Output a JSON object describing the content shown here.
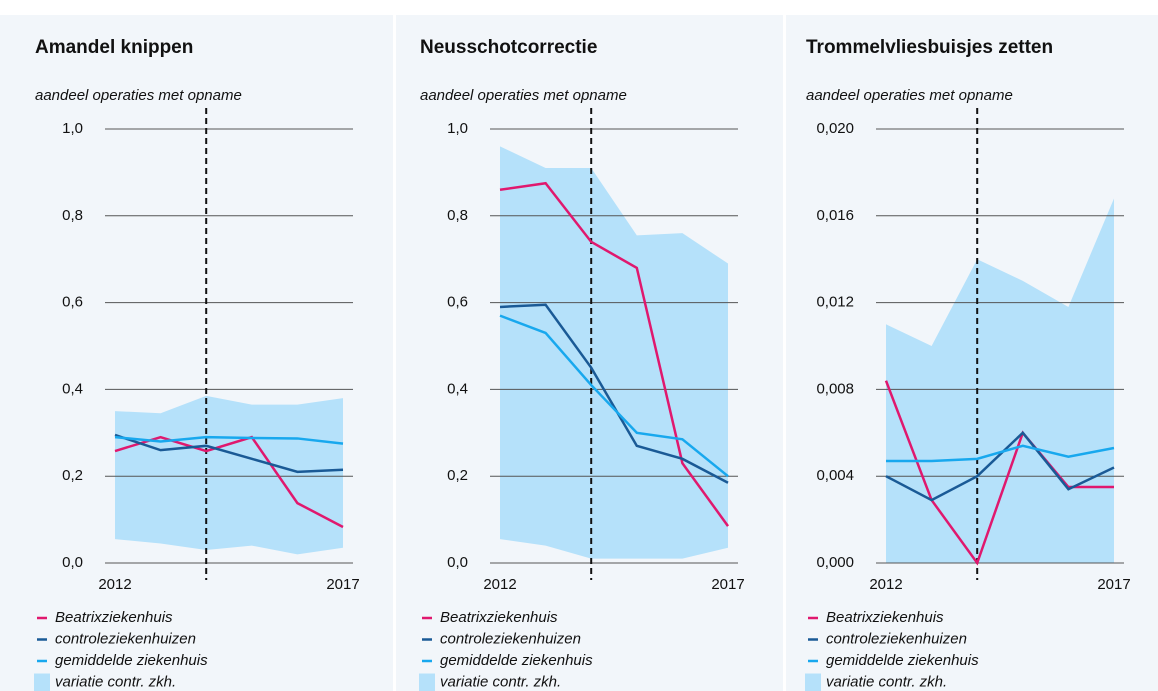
{
  "chart_data": [
    {
      "type": "line",
      "title": "Amandel knippen",
      "subtitle": "aandeel operaties met opname",
      "categories": [
        "2012",
        null,
        null,
        null,
        null,
        "2017"
      ],
      "ylim": [
        0,
        1.0
      ],
      "yticks": [
        {
          "value": 0,
          "label": "0,0"
        },
        {
          "value": 0.2,
          "label": "0,2"
        },
        {
          "value": 0.4,
          "label": "0,4"
        },
        {
          "value": 0.6,
          "label": "0,6"
        },
        {
          "value": 0.8,
          "label": "0,8"
        },
        {
          "value": 1.0,
          "label": "1,0"
        }
      ],
      "grid": true,
      "vline": 2,
      "band": {
        "name": "variatie contr. zkh.",
        "color": "#b5e1fa",
        "upper": [
          0.35,
          0.345,
          0.385,
          0.365,
          0.365,
          0.38
        ],
        "lower": [
          0.055,
          0.045,
          0.03,
          0.04,
          0.02,
          0.035
        ]
      },
      "series": [
        {
          "name": "Beatrixziekenhuis",
          "color": "#e0186e",
          "values": [
            0.258,
            0.29,
            0.258,
            0.29,
            0.138,
            0.083
          ]
        },
        {
          "name": "controleziekenhuizen",
          "color": "#1a5a96",
          "values": [
            0.295,
            0.26,
            0.27,
            0.24,
            0.21,
            0.215
          ]
        },
        {
          "name": "gemiddelde ziekenhuis",
          "color": "#18a8ee",
          "values": [
            0.29,
            0.28,
            0.29,
            0.288,
            0.287,
            0.275
          ]
        }
      ]
    },
    {
      "type": "line",
      "title": "Neusschotcorrectie",
      "subtitle": "aandeel operaties met opname",
      "categories": [
        "2012",
        null,
        null,
        null,
        null,
        "2017"
      ],
      "ylim": [
        0,
        1.0
      ],
      "yticks": [
        {
          "value": 0,
          "label": "0,0"
        },
        {
          "value": 0.2,
          "label": "0,2"
        },
        {
          "value": 0.4,
          "label": "0,4"
        },
        {
          "value": 0.6,
          "label": "0,6"
        },
        {
          "value": 0.8,
          "label": "0,8"
        },
        {
          "value": 1.0,
          "label": "1,0"
        }
      ],
      "grid": true,
      "vline": 2,
      "band": {
        "name": "variatie contr. zkh.",
        "color": "#b5e1fa",
        "upper": [
          0.96,
          0.91,
          0.91,
          0.755,
          0.76,
          0.69
        ],
        "lower": [
          0.055,
          0.04,
          0.01,
          0.01,
          0.01,
          0.035
        ]
      },
      "series": [
        {
          "name": "Beatrixziekenhuis",
          "color": "#e0186e",
          "values": [
            0.86,
            0.875,
            0.74,
            0.68,
            0.23,
            0.085
          ]
        },
        {
          "name": "controleziekenhuizen",
          "color": "#1a5a96",
          "values": [
            0.59,
            0.595,
            0.45,
            0.27,
            0.24,
            0.185
          ]
        },
        {
          "name": "gemiddelde ziekenhuis",
          "color": "#18a8ee",
          "values": [
            0.57,
            0.53,
            0.41,
            0.3,
            0.285,
            0.2
          ]
        }
      ]
    },
    {
      "type": "line",
      "title": "Trommelvliesbuisjes zetten",
      "subtitle": "aandeel operaties met opname",
      "categories": [
        "2012",
        null,
        null,
        null,
        null,
        "2017"
      ],
      "ylim": [
        0,
        0.02
      ],
      "yticks": [
        {
          "value": 0,
          "label": "0,000"
        },
        {
          "value": 0.004,
          "label": "0,004"
        },
        {
          "value": 0.008,
          "label": "0,008"
        },
        {
          "value": 0.012,
          "label": "0,012"
        },
        {
          "value": 0.016,
          "label": "0,016"
        },
        {
          "value": 0.02,
          "label": "0,020"
        }
      ],
      "grid": true,
      "vline": 2,
      "band": {
        "name": "variatie contr. zkh.",
        "color": "#b5e1fa",
        "upper": [
          0.011,
          0.01,
          0.014,
          0.013,
          0.0118,
          0.0168
        ],
        "lower": [
          0,
          0,
          0,
          0,
          0,
          0
        ]
      },
      "series": [
        {
          "name": "Beatrixziekenhuis",
          "color": "#e0186e",
          "values": [
            0.0084,
            0.0029,
            0,
            0.006,
            0.0035,
            0.0035
          ]
        },
        {
          "name": "controleziekenhuizen",
          "color": "#1a5a96",
          "values": [
            0.004,
            0.0029,
            0.004,
            0.006,
            0.0034,
            0.0044
          ]
        },
        {
          "name": "gemiddelde ziekenhuis",
          "color": "#18a8ee",
          "values": [
            0.0047,
            0.0047,
            0.0048,
            0.0054,
            0.0049,
            0.0053
          ]
        }
      ]
    }
  ]
}
